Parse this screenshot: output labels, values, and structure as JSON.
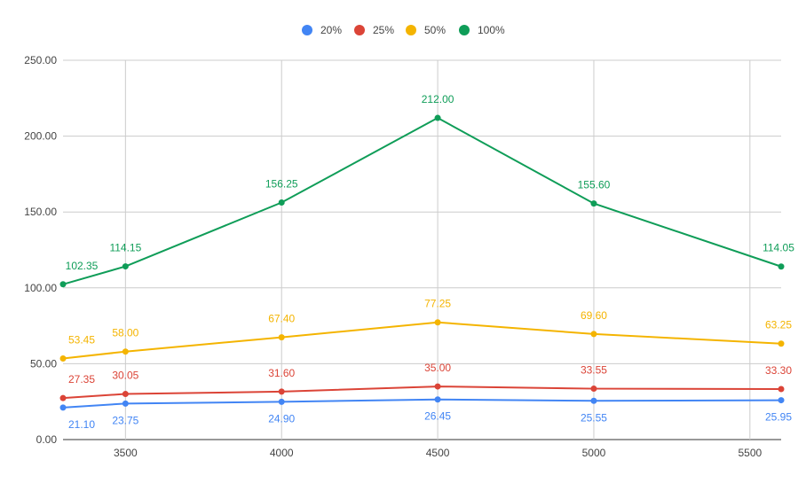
{
  "chart_data": {
    "type": "line",
    "x": [
      3300,
      3500,
      4000,
      4500,
      5000,
      5600
    ],
    "x_ticks": [
      "3500",
      "4000",
      "4500",
      "5000",
      "5500"
    ],
    "y_ticks": [
      "0.00",
      "50.00",
      "100.00",
      "150.00",
      "200.00",
      "250.00"
    ],
    "ylim": [
      0,
      250
    ],
    "grid": true,
    "legend_position": "top-center",
    "series": [
      {
        "name": "20%",
        "color": "#4285f4",
        "values": [
          21.1,
          23.75,
          24.9,
          26.45,
          25.55,
          25.95
        ],
        "labels": [
          "21.10",
          "23.75",
          "24.90",
          "26.45",
          "25.55",
          "25.95"
        ]
      },
      {
        "name": "25%",
        "color": "#db4437",
        "values": [
          27.35,
          30.05,
          31.6,
          35.0,
          33.55,
          33.3
        ],
        "labels": [
          "27.35",
          "30.05",
          "31.60",
          "35.00",
          "33.55",
          "33.30"
        ]
      },
      {
        "name": "50%",
        "color": "#f4b400",
        "values": [
          53.45,
          58.0,
          67.4,
          77.25,
          69.6,
          63.25
        ],
        "labels": [
          "53.45",
          "58.00",
          "67.40",
          "77.25",
          "69.60",
          "63.25"
        ]
      },
      {
        "name": "100%",
        "color": "#0f9d58",
        "values": [
          102.35,
          114.15,
          156.25,
          212.0,
          155.6,
          114.05
        ],
        "labels": [
          "102.35",
          "114.15",
          "156.25",
          "212.00",
          "155.60",
          "114.05"
        ]
      }
    ]
  }
}
